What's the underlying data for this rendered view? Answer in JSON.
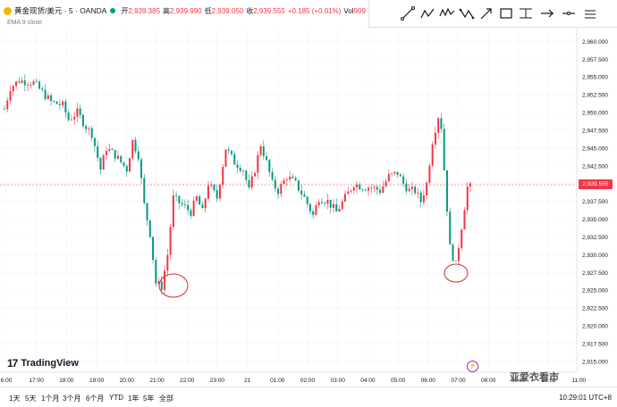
{
  "header": {
    "title": "黄金现货/美元 · 5 · OANDA",
    "open_label": "开",
    "open_value": "2,939.385",
    "high_label": "高",
    "high_value": "2,939.990",
    "low_label": "低",
    "low_value": "2,939.050",
    "close_label": "收",
    "close_value": "2,939.555",
    "change": "+0.185 (+0.01%)",
    "vol_label": "Vol",
    "vol_value": "909",
    "ema": "EMA 9 close"
  },
  "colors": {
    "up": "#f23645",
    "down": "#089981",
    "wick": "#9aa0a6",
    "accent": "#2962ff"
  },
  "toolbar_icons": [
    "trend-line-icon",
    "zigzag-icon",
    "wave-pattern-icon",
    "abcd-pattern-icon",
    "diagonal-arrow-icon",
    "rectangle-icon",
    "horizontal-range-icon",
    "long-position-icon",
    "horizontal-line-icon",
    "more-icon"
  ],
  "chart_data": {
    "type": "candlestick",
    "y_ticks": [
      "2,960.000",
      "2,957.500",
      "2,955.000",
      "2,952.500",
      "2,950.000",
      "2,947.500",
      "2,945.000",
      "2,942.500",
      "2,940.000",
      "2,937.500",
      "2,935.000",
      "2,932.500",
      "2,930.000",
      "2,927.500",
      "2,925.000",
      "2,922.500",
      "2,920.000",
      "2,917.500",
      "2,915.000"
    ],
    "x_ticks": [
      "6:00",
      "17:00",
      "18:00",
      "19:00",
      "20:00",
      "21:00",
      "22:00",
      "23:00",
      "21",
      "01:00",
      "02:00",
      "03:00",
      "04:00",
      "05:00",
      "06:00",
      "07:00",
      "08:00",
      "09:00",
      "10:00",
      "11:00"
    ],
    "ylim": [
      2913.6,
      2961.8
    ],
    "current_price": "2,939.555",
    "anchors": [
      [
        0,
        2950.5
      ],
      [
        2,
        2953.5
      ],
      [
        5,
        2954.5
      ],
      [
        10,
        2954.2
      ],
      [
        16,
        2951.5
      ],
      [
        20,
        2951
      ],
      [
        22,
        2949
      ],
      [
        25,
        2950
      ],
      [
        28,
        2948
      ],
      [
        30,
        2947
      ],
      [
        33,
        2942
      ],
      [
        35,
        2945
      ],
      [
        38,
        2944
      ],
      [
        42,
        2942
      ],
      [
        44,
        2946
      ],
      [
        46,
        2944
      ],
      [
        48,
        2937
      ],
      [
        50,
        2933
      ],
      [
        52,
        2926
      ],
      [
        54,
        2925.5
      ],
      [
        56,
        2930
      ],
      [
        58,
        2938
      ],
      [
        61,
        2937
      ],
      [
        64,
        2936
      ],
      [
        66,
        2938
      ],
      [
        68,
        2936
      ],
      [
        70,
        2940
      ],
      [
        73,
        2938
      ],
      [
        76,
        2945
      ],
      [
        79,
        2943
      ],
      [
        82,
        2942
      ],
      [
        84,
        2939
      ],
      [
        86,
        2942
      ],
      [
        88,
        2945.5
      ],
      [
        90,
        2943
      ],
      [
        92,
        2940
      ],
      [
        94,
        2939
      ],
      [
        97,
        2941
      ],
      [
        100,
        2940
      ],
      [
        103,
        2938
      ],
      [
        106,
        2935.5
      ],
      [
        108,
        2938
      ],
      [
        111,
        2937.5
      ],
      [
        114,
        2936
      ],
      [
        117,
        2938
      ],
      [
        120,
        2940
      ],
      [
        123,
        2939.5
      ],
      [
        126,
        2939.5
      ],
      [
        129,
        2939
      ],
      [
        132,
        2941
      ],
      [
        135,
        2941.5
      ],
      [
        137,
        2940
      ],
      [
        139,
        2939
      ],
      [
        141,
        2939
      ],
      [
        143,
        2937.5
      ],
      [
        145,
        2940
      ],
      [
        147,
        2946
      ],
      [
        149,
        2949.5
      ],
      [
        150,
        2948
      ],
      [
        151,
        2942
      ],
      [
        153,
        2931
      ],
      [
        155,
        2928.5
      ],
      [
        157,
        2934
      ],
      [
        159,
        2939.5
      ],
      [
        160,
        2939.5
      ]
    ]
  },
  "bottom_bar": {
    "ranges": [
      "1天",
      "5天",
      "1个月",
      "3个月",
      "6个月",
      "YTD",
      "1年",
      "5年",
      "全部"
    ],
    "time": "10:29:01 UTC+8"
  },
  "branding": {
    "logo_text": "TradingView",
    "watermark": "亚爱衣看市"
  }
}
